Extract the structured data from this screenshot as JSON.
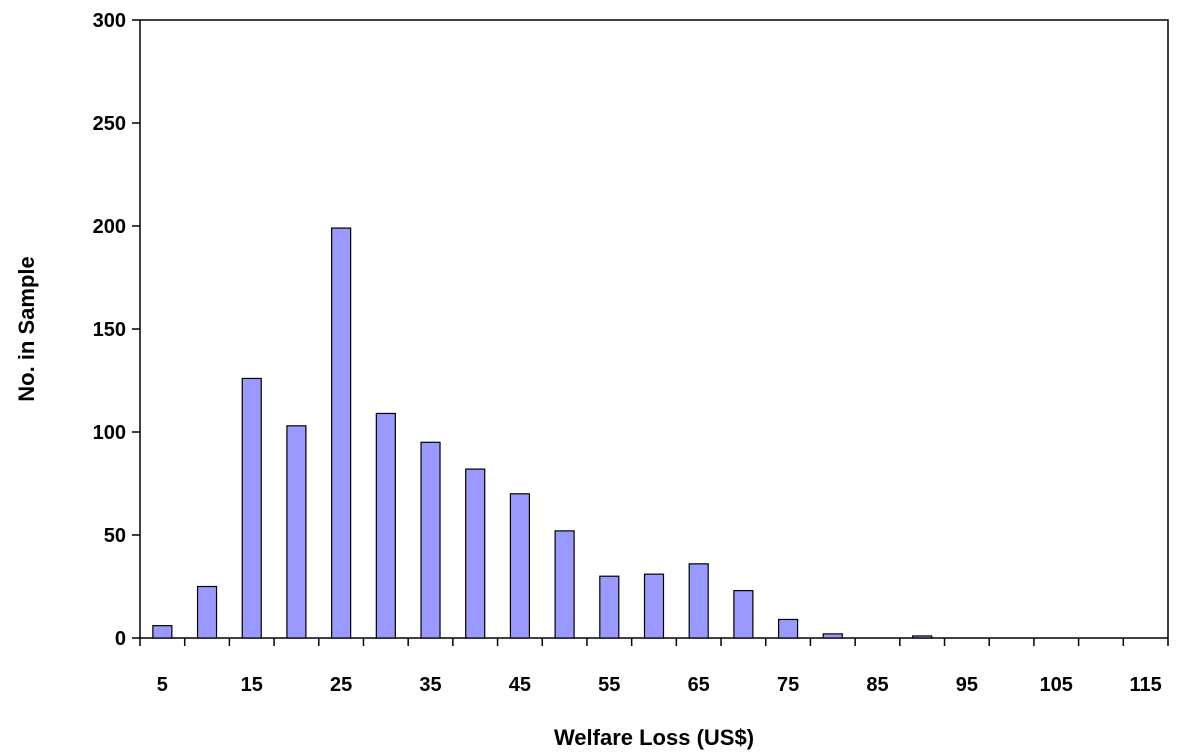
{
  "chart_data": {
    "type": "bar",
    "title": "",
    "xlabel": "Welfare Loss (US$)",
    "ylabel": "No. in Sample",
    "categories": [
      5,
      10,
      15,
      20,
      25,
      30,
      35,
      40,
      45,
      50,
      55,
      60,
      65,
      70,
      75,
      80,
      85,
      90,
      95,
      100,
      105,
      110,
      115
    ],
    "values": [
      6,
      25,
      126,
      103,
      199,
      109,
      95,
      82,
      70,
      52,
      30,
      31,
      36,
      23,
      9,
      2,
      0,
      1,
      0,
      0,
      0,
      0,
      0
    ],
    "x_tick_labels": [
      "5",
      "15",
      "25",
      "35",
      "45",
      "55",
      "65",
      "75",
      "85",
      "95",
      "105",
      "115"
    ],
    "y_tick_labels": [
      "0",
      "50",
      "100",
      "150",
      "200",
      "250",
      "300"
    ],
    "ylim": [
      0,
      300
    ],
    "y_ticks": [
      0,
      50,
      100,
      150,
      200,
      250,
      300
    ],
    "grid": false,
    "legend": "none",
    "colors": {
      "bar_fill": "#9999ff",
      "bar_stroke": "#000000",
      "axis": "#000000"
    }
  }
}
